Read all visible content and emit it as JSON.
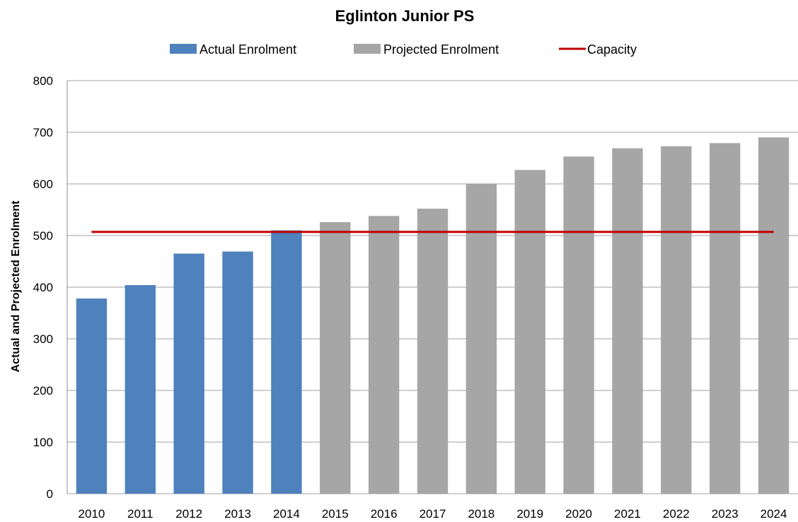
{
  "chart_data": {
    "type": "bar",
    "title": "Eglinton Junior PS",
    "xlabel": "",
    "ylabel": "Actual and Projected Enrolment",
    "ylim": [
      0,
      800
    ],
    "yticks": [
      0,
      100,
      200,
      300,
      400,
      500,
      600,
      700,
      800
    ],
    "categories": [
      "2010",
      "2011",
      "2012",
      "2013",
      "2014",
      "2015",
      "2016",
      "2017",
      "2018",
      "2019",
      "2020",
      "2021",
      "2022",
      "2023",
      "2024"
    ],
    "series": [
      {
        "name": "Actual Enrolment",
        "type": "bar",
        "color": "#4F81BD",
        "values": [
          378,
          404,
          465,
          469,
          510,
          null,
          null,
          null,
          null,
          null,
          null,
          null,
          null,
          null,
          null
        ]
      },
      {
        "name": "Projected Enrolment",
        "type": "bar",
        "color": "#A6A6A6",
        "values": [
          null,
          null,
          null,
          null,
          null,
          526,
          538,
          552,
          600,
          627,
          653,
          669,
          673,
          679,
          690
        ]
      },
      {
        "name": "Capacity",
        "type": "line",
        "color": "#C00000",
        "values": [
          507,
          507,
          507,
          507,
          507,
          507,
          507,
          507,
          507,
          507,
          507,
          507,
          507,
          507,
          507
        ]
      }
    ],
    "grid": true,
    "legend_position": "top"
  }
}
